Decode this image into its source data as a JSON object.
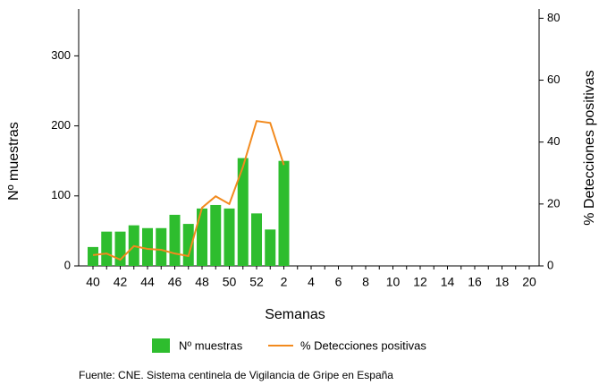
{
  "chart_data": {
    "type": "bar_line",
    "x_label": "Semanas",
    "y_label": "Nº muestras",
    "y2_label": "% Detecciones positivas",
    "source": "Fuente: CNE. Sistema centinela de Vigilancia de Gripe en España",
    "categories": [
      "40",
      null,
      "42",
      null,
      "44",
      null,
      "46",
      null,
      "48",
      null,
      "50",
      null,
      "52",
      null,
      "2",
      null,
      "4",
      null,
      "6",
      null,
      "8",
      null,
      "10",
      null,
      "12",
      null,
      "14",
      null,
      "16",
      null,
      "18",
      null,
      "20"
    ],
    "series": [
      {
        "name": "Nº muestras",
        "type": "bar",
        "color": "#2ebd2e",
        "values": [
          27,
          49,
          49,
          58,
          54,
          54,
          73,
          60,
          82,
          87,
          82,
          154,
          75,
          52,
          150,
          null,
          null,
          null,
          null,
          null,
          null,
          null,
          null,
          null,
          null,
          null,
          null,
          null,
          null,
          null,
          null,
          null,
          null
        ]
      },
      {
        "name": "% Detecciones positivas",
        "type": "line",
        "axis": "y2",
        "color": "#f28a1e",
        "values": [
          3.5,
          4,
          2,
          6.4,
          5.5,
          5.2,
          4,
          3.2,
          18.8,
          22.5,
          20,
          32,
          46.8,
          46.2,
          32.6,
          null,
          null,
          null,
          null,
          null,
          null,
          null,
          null,
          null,
          null,
          null,
          null,
          null,
          null,
          null,
          null,
          null,
          null
        ]
      }
    ],
    "ylim": [
      0,
      367
    ],
    "yticks": [
      0,
      100,
      200,
      300
    ],
    "y2lim": [
      0,
      83
    ],
    "y2ticks": [
      0,
      20,
      40,
      60,
      80
    ],
    "grid": false
  }
}
